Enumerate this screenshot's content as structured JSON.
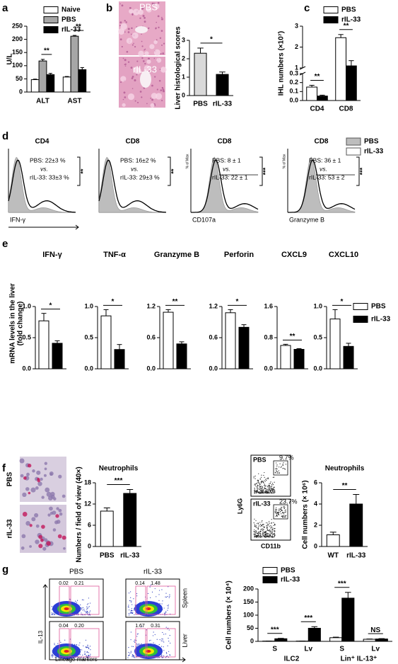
{
  "panel_labels": [
    "a",
    "b",
    "c",
    "d",
    "e",
    "f",
    "g"
  ],
  "chart_data": [
    {
      "type": "bar",
      "ylabel": "U/L",
      "categories": [
        "ALT",
        "AST"
      ],
      "series": [
        {
          "name": "Naive",
          "color": "#ffffff",
          "values": [
            47,
            57
          ],
          "errors": [
            2,
            2
          ]
        },
        {
          "name": "PBS",
          "color": "#a6a6a6",
          "values": [
            118,
            212
          ],
          "errors": [
            6,
            3
          ]
        },
        {
          "name": "rIL-33",
          "color": "#000000",
          "values": [
            66,
            85
          ],
          "errors": [
            5,
            8
          ]
        }
      ],
      "ylim": [
        0,
        250
      ],
      "yticks": [
        0,
        50,
        100,
        150,
        200,
        250
      ],
      "legend": "top-left",
      "annotations": [
        "**",
        "**"
      ]
    },
    {
      "type": "bar",
      "ylabel": "Liver histological scores",
      "categories": [
        "PBS",
        "rIL-33"
      ],
      "values": [
        2.3,
        1.15
      ],
      "errors": [
        0.28,
        0.13
      ],
      "colors": [
        "#d9d9d9",
        "#000000"
      ],
      "ylim": [
        0,
        3
      ],
      "yticks": [
        0,
        1,
        2,
        3
      ],
      "annotations": [
        "*"
      ]
    },
    {
      "type": "bar",
      "ylabel": "IHL numbers (×10⁷)",
      "categories": [
        "CD4",
        "CD8"
      ],
      "series": [
        {
          "name": "PBS",
          "color": "#ffffff",
          "values": [
            0.15,
            2.45
          ],
          "errors": [
            0.02,
            0.15
          ]
        },
        {
          "name": "rIL-33",
          "color": "#000000",
          "values": [
            0.05,
            1.1
          ],
          "errors": [
            0.01,
            0.25
          ]
        }
      ],
      "ylim": [
        0,
        3
      ],
      "axis_break": [
        0.3,
        1
      ],
      "yticks": [
        {
          "value": 0,
          "label": "0.0"
        },
        0.1,
        0.2,
        0.3,
        1,
        2,
        3
      ],
      "legend": "top-right",
      "annotations": [
        "**",
        "**"
      ]
    },
    {
      "type": "bar",
      "ylabel": [
        "mRNA levels in the liver",
        "(fold change)"
      ],
      "facets": [
        "IFN-γ",
        "TNF-α",
        "Granzyme B",
        "Perforin",
        "CXCL9",
        "CXCL10"
      ],
      "series": [
        {
          "name": "PBS",
          "color": "#ffffff",
          "values": [
            0.77,
            0.85,
            1.09,
            1.08,
            0.6,
            0.8
          ],
          "errors": [
            0.12,
            0.1,
            0.05,
            0.06,
            0.03,
            0.15
          ]
        },
        {
          "name": "rIL-33",
          "color": "#000000",
          "values": [
            0.41,
            0.31,
            0.48,
            0.8,
            0.5,
            0.36
          ],
          "errors": [
            0.04,
            0.08,
            0.04,
            0.05,
            0.02,
            0.05
          ]
        }
      ],
      "ylim": [
        [
          0,
          1
        ],
        [
          0,
          1
        ],
        [
          0,
          1.2
        ],
        [
          0,
          1.2
        ],
        [
          0,
          1.6
        ],
        [
          0,
          1
        ]
      ],
      "yticks": [
        [
          {
            "value": 0,
            "label": "0.0"
          },
          0.5,
          {
            "value": 1,
            "label": "1.0"
          }
        ],
        [
          {
            "value": 0,
            "label": "0.0"
          },
          0.5,
          {
            "value": 1,
            "label": "1.0"
          }
        ],
        [
          {
            "value": 0,
            "label": "0.0"
          },
          0.6,
          1.2
        ],
        [
          {
            "value": 0,
            "label": "0.0"
          },
          0.6,
          1.2
        ],
        [
          {
            "value": 0,
            "label": "0.0"
          },
          0.8,
          1.6
        ],
        [
          {
            "value": 0,
            "label": "0.0"
          },
          0.5,
          {
            "value": 1,
            "label": "1.0"
          }
        ]
      ],
      "legend": "right",
      "annotations": [
        "*",
        "*",
        "**",
        "*",
        "**",
        "*"
      ]
    },
    {
      "type": "bar",
      "title": "Neutrophils",
      "ylabel": "Numbers / field of view (40×)",
      "categories": [
        "PBS",
        "rIL-33"
      ],
      "values": [
        10,
        15
      ],
      "errors": [
        0.9,
        1.1
      ],
      "colors": [
        "#ffffff",
        "#000000"
      ],
      "ylim": [
        0,
        18
      ],
      "yticks": [
        0,
        6,
        12,
        18
      ],
      "annotations": [
        "***"
      ]
    },
    {
      "type": "bar",
      "title": "Neutrophils",
      "ylabel": "Cell numbers (× 10⁶)",
      "categories": [
        "WT",
        "rIL-33"
      ],
      "values": [
        1.1,
        4.0
      ],
      "errors": [
        0.25,
        0.9
      ],
      "colors": [
        "#ffffff",
        "#000000"
      ],
      "ylim": [
        0,
        6
      ],
      "yticks": [
        0,
        2,
        4,
        6
      ],
      "annotations": [
        "**"
      ]
    },
    {
      "type": "bar",
      "ylabel": "Cell numbers (× 10⁴)",
      "categories": [
        "S",
        "Lv",
        "S",
        "Lv"
      ],
      "groups": [
        "ILC2",
        "Lin⁺ IL-13⁺"
      ],
      "series": [
        {
          "name": "PBS",
          "color": "#ffffff",
          "values": [
            1,
            1,
            14,
            8
          ],
          "errors": [
            0.3,
            0.3,
            2,
            1
          ]
        },
        {
          "name": "rIL-33",
          "color": "#000000",
          "values": [
            10,
            50,
            165,
            9
          ],
          "errors": [
            1.5,
            6,
            22,
            1.5
          ]
        }
      ],
      "ylim": [
        0,
        200
      ],
      "yticks": [
        0,
        50,
        100,
        150,
        200
      ],
      "legend": "top-left",
      "annotations": [
        "***",
        "***",
        "***",
        "NS"
      ]
    }
  ],
  "panel_b": {
    "images": [
      "PBS",
      "rIL-33"
    ]
  },
  "panel_d": {
    "legend": [
      {
        "name": "PBS",
        "color": "#bdbdbd"
      },
      {
        "name": "rIL-33",
        "color": "#ffffff"
      }
    ],
    "plots": [
      {
        "title": "CD4",
        "lines": [
          "PBS: 22±3 %",
          "vs.",
          "rIL-33: 33±3 %"
        ],
        "sig": "**",
        "xlabel": "IFN-γ"
      },
      {
        "title": "CD8",
        "lines": [
          "PBS: 16±2 %",
          "vs.",
          "rIL-33: 29±3 %"
        ],
        "sig": "**"
      },
      {
        "title": "CD8",
        "lines": [
          "PBS: 8 ± 1",
          "vs.",
          "rIL-33: 22 ± 1"
        ],
        "sig": "***",
        "xlabel": "CD107a",
        "ylabel": "% of Max"
      },
      {
        "title": "CD8",
        "lines": [
          "PBS: 36 ± 1",
          "vs.",
          "rIL-33: 53 ± 2"
        ],
        "sig": "***",
        "xlabel": "Granzyme B",
        "ylabel": "% of Max"
      }
    ]
  },
  "panel_f": {
    "images": [
      "PBS",
      "rIL-33"
    ],
    "flow": {
      "plots": [
        {
          "label": "PBS",
          "gate": "9.7%"
        },
        {
          "label": "rIL-33",
          "gate": "23.7%"
        }
      ],
      "ylabel": "Ly6G",
      "xlabel": "CD11b"
    }
  },
  "panel_g": {
    "columns": [
      "PBS",
      "rIL-33"
    ],
    "rows": [
      "Spleen",
      "Liver"
    ],
    "gates": [
      [
        [
          "0.02",
          "0.21"
        ],
        [
          "0.14",
          "1.48"
        ]
      ],
      [
        [
          "0.04",
          "0.20"
        ],
        [
          "1.67",
          "0.31"
        ]
      ]
    ],
    "ylabel": "IL-13",
    "xlabel": "Lineage markers"
  }
}
